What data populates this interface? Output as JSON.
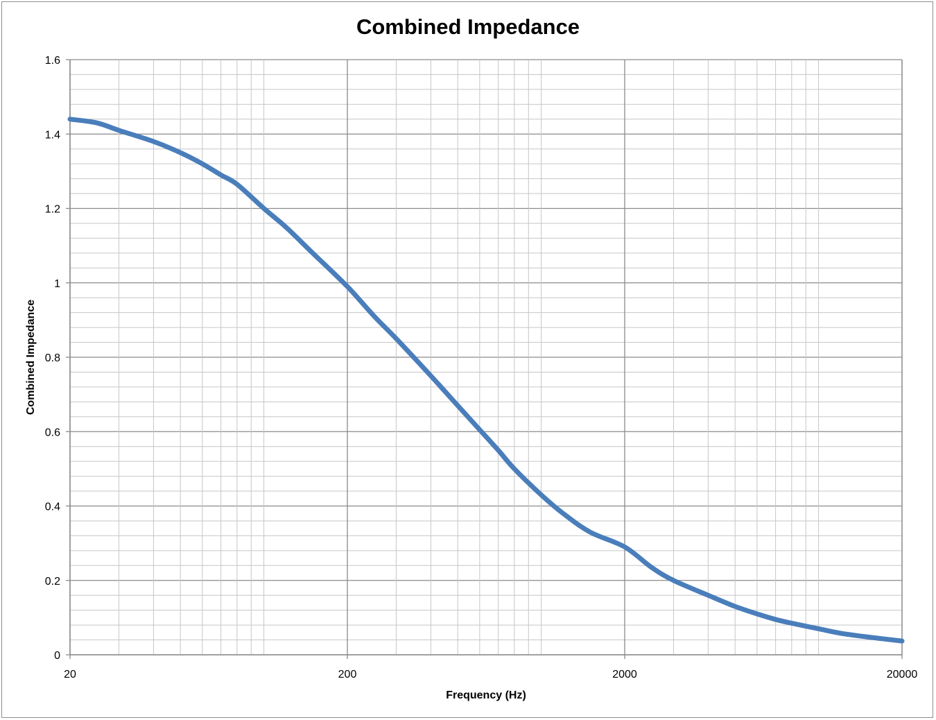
{
  "chart_data": {
    "type": "line",
    "title": "Combined Impedance",
    "xlabel": "Frequency (Hz)",
    "ylabel": "Combined Impedance",
    "x_scale": "log",
    "xlim": [
      20,
      20000
    ],
    "ylim": [
      0,
      1.6
    ],
    "x_ticks": [
      "20",
      "200",
      "2000",
      "20000"
    ],
    "y_ticks": [
      "0",
      "0.2",
      "0.4",
      "0.6",
      "0.8",
      "1",
      "1.2",
      "1.4",
      "1.6"
    ],
    "y_tick_values": [
      0,
      0.2,
      0.4,
      0.6,
      0.8,
      1,
      1.2,
      1.4,
      1.6
    ],
    "x_tick_values": [
      20,
      200,
      2000,
      20000
    ],
    "grid": true,
    "legend": "none",
    "series": [
      {
        "color": "#4a7ebb",
        "x": [
          20,
          25,
          30,
          40,
          50,
          60,
          70,
          80,
          100,
          120,
          150,
          200,
          250,
          300,
          400,
          500,
          600,
          700,
          800,
          1000,
          1200,
          1500,
          2000,
          2500,
          3000,
          4000,
          5000,
          6000,
          7000,
          8000,
          10000,
          12000,
          15000,
          20000
        ],
        "y": [
          1.44,
          1.43,
          1.41,
          1.38,
          1.35,
          1.32,
          1.29,
          1.265,
          1.2,
          1.15,
          1.08,
          0.99,
          0.91,
          0.85,
          0.75,
          0.67,
          0.605,
          0.55,
          0.5,
          0.43,
          0.38,
          0.33,
          0.29,
          0.235,
          0.2,
          0.16,
          0.13,
          0.11,
          0.095,
          0.085,
          0.07,
          0.058,
          0.048,
          0.037
        ]
      }
    ]
  }
}
